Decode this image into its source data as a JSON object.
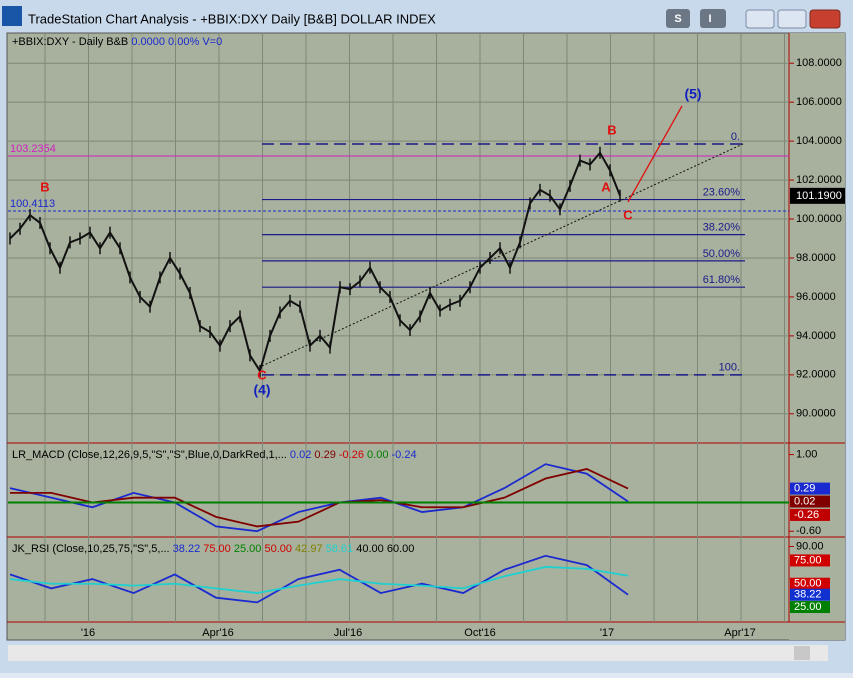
{
  "window": {
    "title": "TradeStation Chart Analysis - +BBIX:DXY Daily [B&B] DOLLAR INDEX",
    "button_s": "S",
    "button_i": "I"
  },
  "price_panel": {
    "header": {
      "symbol": "+BBIX:DXY - Daily  B&B",
      "value": "0.0000",
      "percent": "0.00%",
      "volume": "V=0"
    },
    "ylim": [
      88.5,
      109.5
    ],
    "yticks": [
      {
        "value": 108,
        "label": "108.0000"
      },
      {
        "value": 106,
        "label": "106.0000"
      },
      {
        "value": 104,
        "label": "104.0000"
      },
      {
        "value": 102,
        "label": "102.0000"
      },
      {
        "value": 100,
        "label": "100.0000"
      },
      {
        "value": 98,
        "label": "98.0000"
      },
      {
        "value": 96,
        "label": "96.0000"
      },
      {
        "value": 94,
        "label": "94.0000"
      },
      {
        "value": 92,
        "label": "92.0000"
      },
      {
        "value": 90,
        "label": "90.0000"
      }
    ],
    "last_price": {
      "value": 101.19,
      "label": "101.1900"
    },
    "closes": [
      99.0,
      99.5,
      100.2,
      99.8,
      98.5,
      97.5,
      98.8,
      99.0,
      99.3,
      98.5,
      99.3,
      98.5,
      97.0,
      96.0,
      95.5,
      97.0,
      98.0,
      97.2,
      96.2,
      94.5,
      94.2,
      93.5,
      94.5,
      95.0,
      93.0,
      92.2,
      94.0,
      95.2,
      95.8,
      95.5,
      93.5,
      94.0,
      93.4,
      96.5,
      96.4,
      96.8,
      97.5,
      96.5,
      96.0,
      94.8,
      94.3,
      95.0,
      96.2,
      95.3,
      95.6,
      95.8,
      96.5,
      97.5,
      98.0,
      98.5,
      97.5,
      98.8,
      100.8,
      101.5,
      101.2,
      100.5,
      101.7,
      103.0,
      102.8,
      103.4,
      102.5,
      101.2
    ],
    "level_lines": [
      {
        "value": 103.2354,
        "label": "103.2354"
      },
      {
        "value": 100.4113,
        "label": "100.4113"
      }
    ],
    "fib_levels": [
      {
        "value": 103.85,
        "label": "0."
      },
      {
        "value": 101.0,
        "label": "23.60%"
      },
      {
        "value": 99.2,
        "label": "38.20%"
      },
      {
        "value": 97.85,
        "label": "50.00%"
      },
      {
        "value": 96.5,
        "label": "61.80%"
      },
      {
        "value": 92.0,
        "label": "100."
      }
    ],
    "wave_labels": {
      "b_left": "B",
      "c_low": "C",
      "wave4": "(4)",
      "b_top": "B",
      "a": "A",
      "c_right": "C",
      "wave5": "(5)"
    }
  },
  "macd_panel": {
    "header": {
      "name": "LR_MACD (Close,12,26,9,5,\"S\",\"S\",Blue,0,DarkRed,1,...",
      "v1": "0.02",
      "v2": "0.29",
      "v3": "-0.26",
      "v4": "0.00",
      "v5": "-0.24"
    },
    "ylim": [
      -0.7,
      1.2
    ],
    "yticks": [
      {
        "value": 1,
        "label": "1.00"
      },
      {
        "value": -0.6,
        "label": "-0.60"
      }
    ],
    "macd": [
      0.3,
      0.1,
      -0.1,
      0.2,
      0.0,
      -0.5,
      -0.6,
      -0.2,
      0.0,
      0.1,
      -0.2,
      -0.1,
      0.3,
      0.8,
      0.6,
      0.02
    ],
    "signal": [
      0.2,
      0.2,
      0.0,
      0.1,
      0.1,
      -0.3,
      -0.5,
      -0.4,
      0.0,
      0.05,
      -0.1,
      -0.1,
      0.1,
      0.5,
      0.7,
      0.29
    ],
    "boxes": [
      {
        "value": 0.29,
        "label": "0.29"
      },
      {
        "value": 0.02,
        "label": "0.02"
      },
      {
        "value": -0.26,
        "label": "-0.26"
      }
    ]
  },
  "rsi_panel": {
    "header": {
      "name": "JK_RSI (Close,10,25,75,\"S\",5,...",
      "v1": "38.22",
      "v2": "75.00",
      "v3": "25.00",
      "v4": "50.00",
      "v5": "42.97",
      "v6": "58.61",
      "v7": "40.00",
      "v8": "60.00"
    },
    "ylim": [
      10,
      98
    ],
    "yticks": [
      {
        "value": 90,
        "label": "90.00"
      }
    ],
    "rsi": [
      60,
      45,
      55,
      40,
      60,
      35,
      30,
      55,
      65,
      40,
      50,
      40,
      65,
      80,
      70,
      38.22
    ],
    "average": [
      55,
      50,
      50,
      48,
      50,
      45,
      40,
      48,
      55,
      50,
      48,
      45,
      58,
      68,
      66,
      58.61
    ],
    "boxes": [
      {
        "value": 75,
        "label": "75.00",
        "color": "#d00000"
      },
      {
        "value": 50,
        "label": "50.00",
        "color": "#d00000"
      },
      {
        "value": 38.22,
        "label": "38.22",
        "color": "#1030d0"
      },
      {
        "value": 25,
        "label": "25.00",
        "color": "#008000"
      }
    ]
  },
  "x_axis": {
    "labels": [
      "'16",
      "Apr'16",
      "Jul'16",
      "Oct'16",
      "'17",
      "Apr'17"
    ]
  }
}
